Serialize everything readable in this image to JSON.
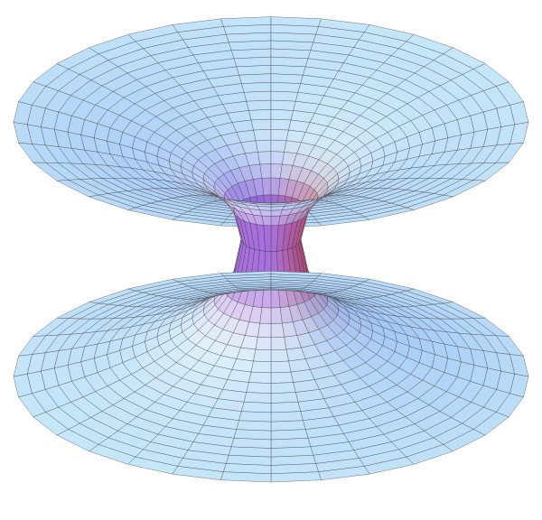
{
  "figure": {
    "subject": "wormhole-surface",
    "surface_type": "catenoid",
    "grid": true,
    "colors": {
      "rim": "#d4f2fb",
      "blue": "#6f9cf0",
      "highlight": "#ffffff",
      "throat": "#b8204a",
      "violet": "#7a3cf0",
      "grid_line": "#3a3a3a",
      "background": "#ffffff"
    }
  }
}
